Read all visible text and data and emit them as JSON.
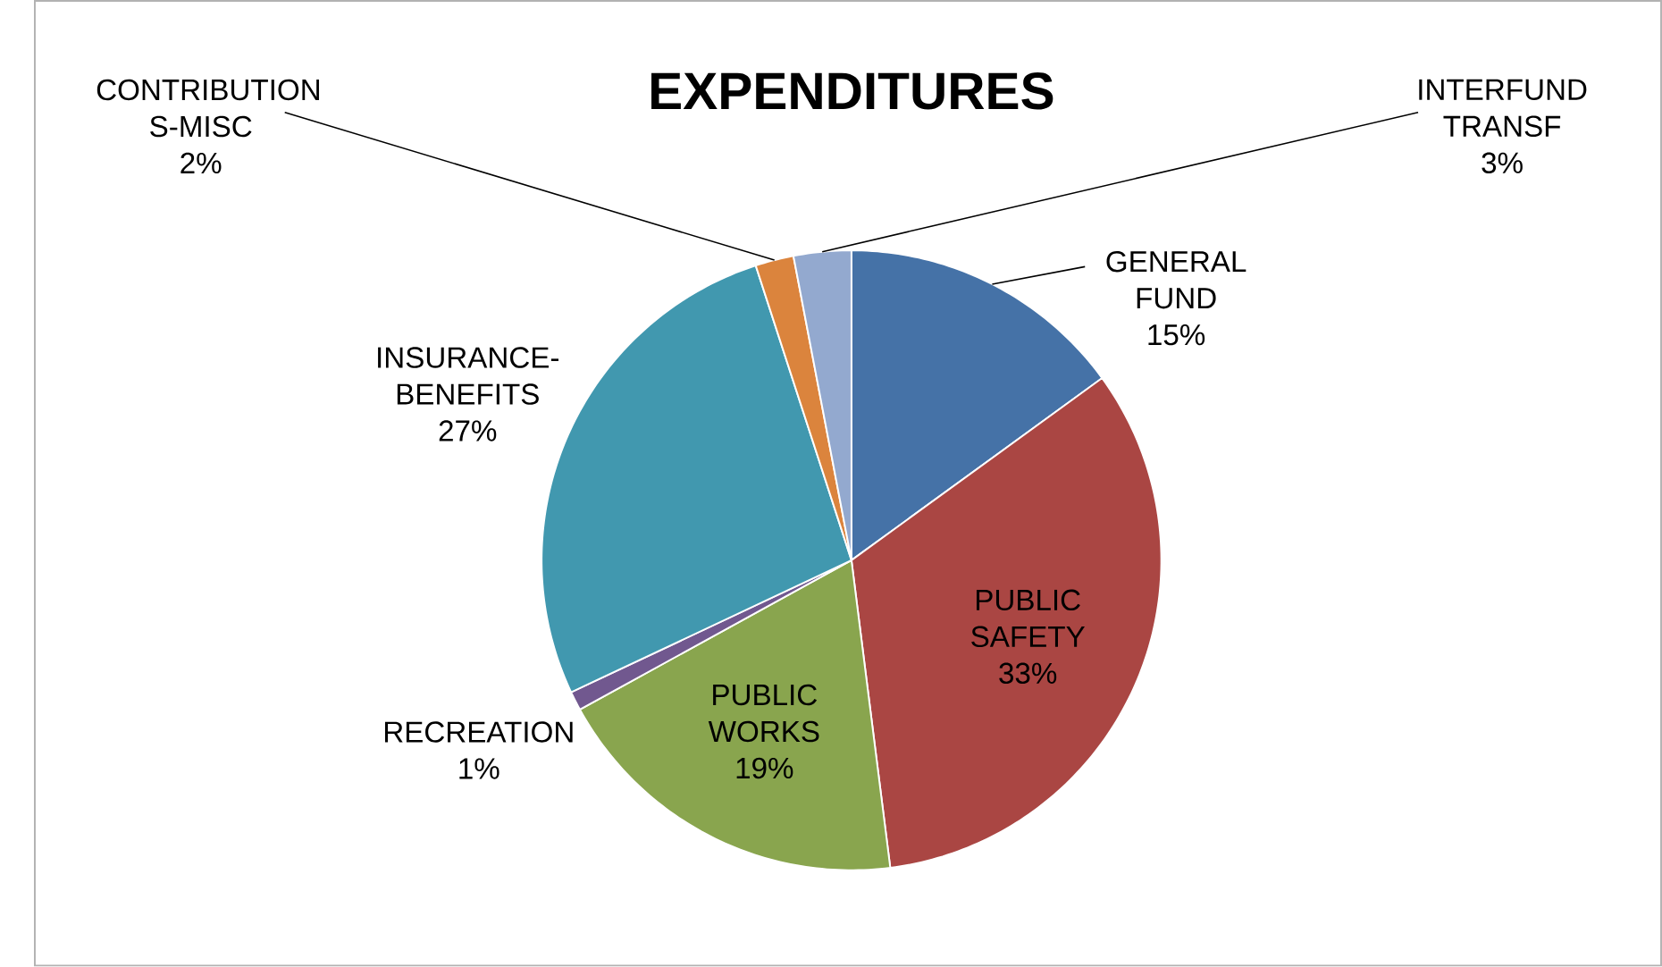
{
  "chart_data": {
    "type": "pie",
    "title": "EXPENDITURES",
    "categories": [
      "GENERAL FUND",
      "PUBLIC SAFETY",
      "PUBLIC WORKS",
      "RECREATION",
      "INSURANCE-BENEFITS",
      "CONTRIBUTION S-MISC",
      "INTERFUND TRANSF"
    ],
    "values": [
      15,
      33,
      19,
      1,
      27,
      2,
      3
    ],
    "value_labels": [
      "15%",
      "33%",
      "19%",
      "1%",
      "27%",
      "2%",
      "3%"
    ],
    "colors": [
      "#4572a7",
      "#aa4643",
      "#89a54e",
      "#71588f",
      "#4198af",
      "#db843d",
      "#93a9cf"
    ]
  }
}
